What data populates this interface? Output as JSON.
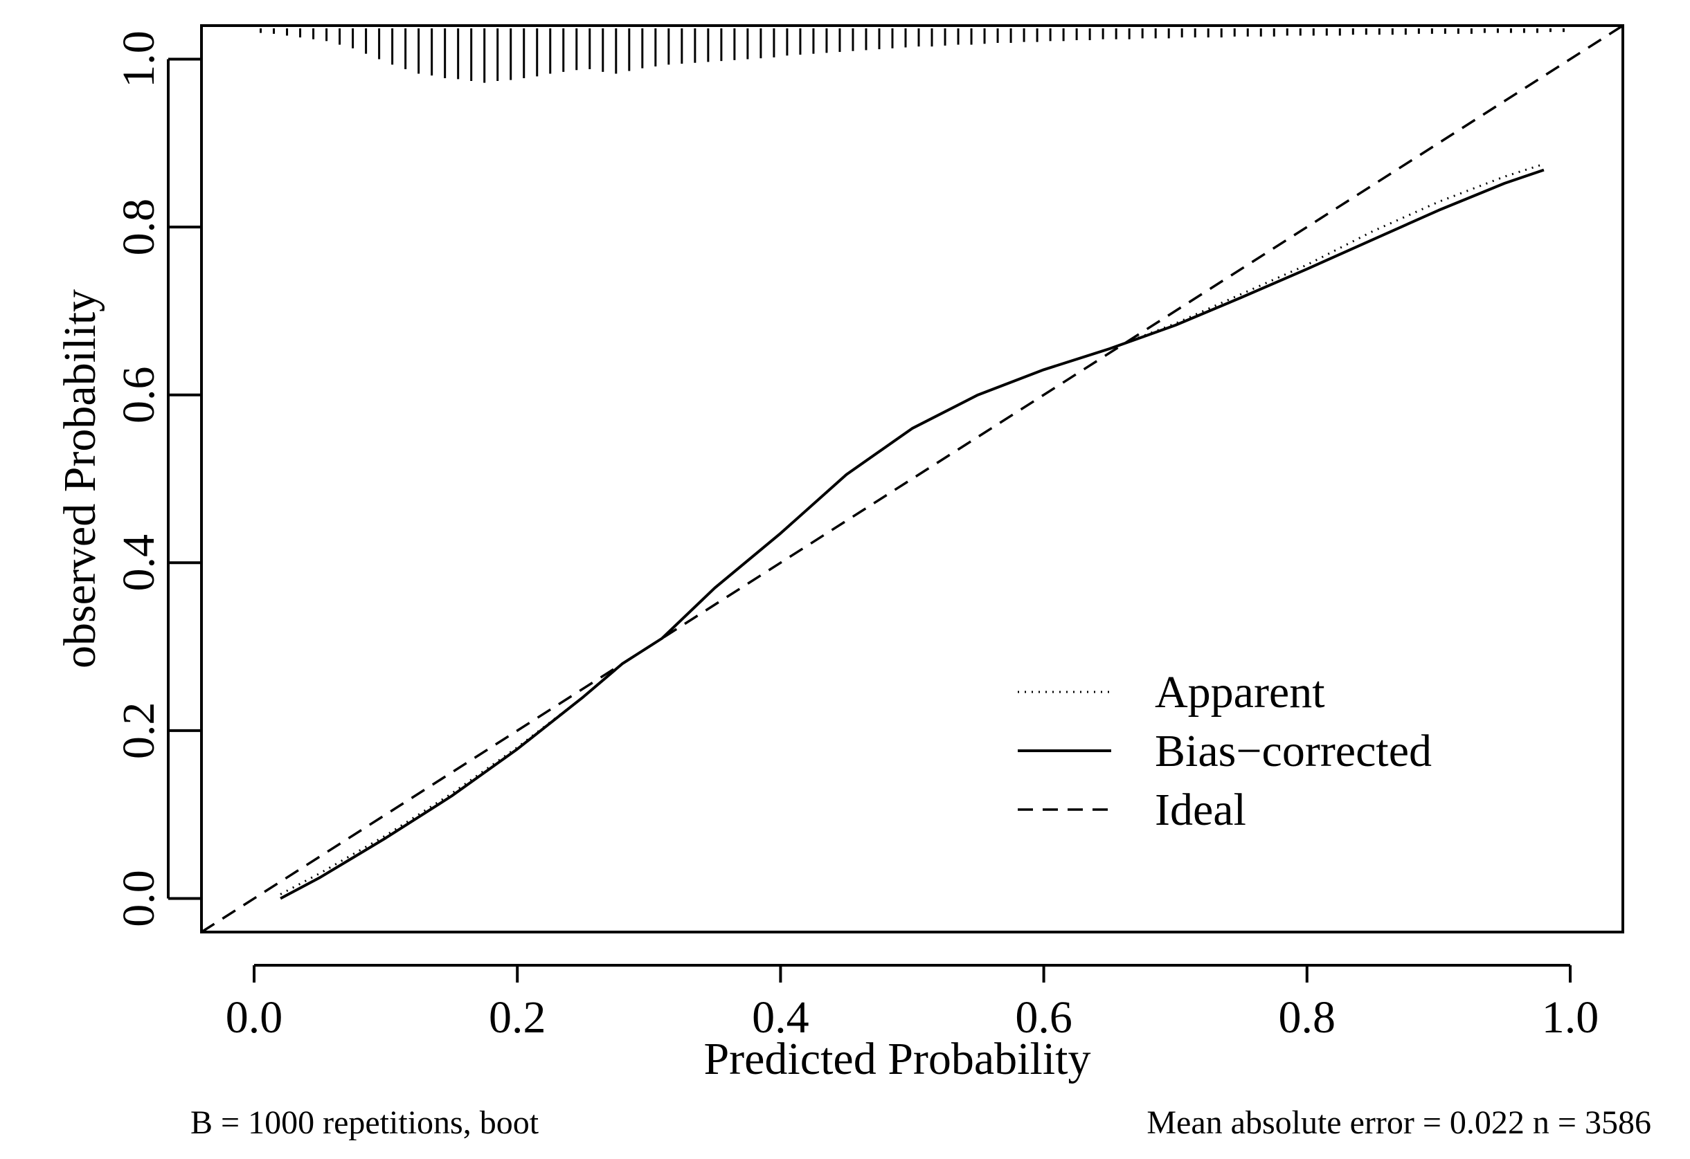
{
  "chart_data": {
    "type": "line",
    "title": "",
    "xlabel": "Predicted Probability",
    "ylabel": "observed Probability",
    "xlim": [
      -0.04,
      1.04
    ],
    "ylim": [
      -0.04,
      1.04
    ],
    "x_ticks": [
      "0.0",
      "0.2",
      "0.4",
      "0.6",
      "0.8",
      "1.0"
    ],
    "y_ticks": [
      "0.0",
      "0.2",
      "0.4",
      "0.6",
      "0.8",
      "1.0"
    ],
    "grid": false,
    "legend_position": "bottom-right",
    "series": [
      {
        "name": "Apparent",
        "style": "dotted",
        "x": [
          0.02,
          0.05,
          0.1,
          0.15,
          0.2,
          0.25,
          0.28,
          0.31,
          0.35,
          0.4,
          0.45,
          0.5,
          0.55,
          0.6,
          0.65,
          0.7,
          0.75,
          0.8,
          0.85,
          0.9,
          0.95,
          0.98
        ],
        "y": [
          0.005,
          0.03,
          0.075,
          0.125,
          0.18,
          0.24,
          0.28,
          0.31,
          0.37,
          0.435,
          0.505,
          0.56,
          0.6,
          0.63,
          0.655,
          0.685,
          0.72,
          0.755,
          0.795,
          0.83,
          0.86,
          0.875
        ]
      },
      {
        "name": "Bias−corrected",
        "style": "solid",
        "x": [
          0.02,
          0.05,
          0.1,
          0.15,
          0.2,
          0.25,
          0.28,
          0.31,
          0.35,
          0.4,
          0.45,
          0.5,
          0.55,
          0.6,
          0.65,
          0.7,
          0.75,
          0.8,
          0.85,
          0.9,
          0.95,
          0.98
        ],
        "y": [
          0.0,
          0.025,
          0.072,
          0.122,
          0.178,
          0.24,
          0.28,
          0.31,
          0.37,
          0.435,
          0.505,
          0.56,
          0.6,
          0.63,
          0.655,
          0.683,
          0.716,
          0.75,
          0.785,
          0.82,
          0.852,
          0.868
        ]
      },
      {
        "name": "Ideal",
        "style": "dashed",
        "x": [
          -0.04,
          1.04
        ],
        "y": [
          -0.04,
          1.04
        ]
      }
    ],
    "rug": {
      "x_start": 0.0,
      "x_end": 1.0,
      "count": 100,
      "length_fraction": [
        0.005,
        0.006,
        0.008,
        0.01,
        0.012,
        0.014,
        0.018,
        0.022,
        0.028,
        0.034,
        0.04,
        0.045,
        0.05,
        0.052,
        0.055,
        0.056,
        0.058,
        0.06,
        0.058,
        0.057,
        0.055,
        0.053,
        0.05,
        0.048,
        0.046,
        0.045,
        0.048,
        0.05,
        0.047,
        0.044,
        0.042,
        0.04,
        0.039,
        0.038,
        0.037,
        0.036,
        0.035,
        0.034,
        0.033,
        0.032,
        0.03,
        0.029,
        0.028,
        0.027,
        0.026,
        0.025,
        0.024,
        0.023,
        0.022,
        0.021,
        0.02,
        0.02,
        0.019,
        0.018,
        0.018,
        0.017,
        0.016,
        0.016,
        0.015,
        0.015,
        0.014,
        0.014,
        0.013,
        0.013,
        0.012,
        0.012,
        0.012,
        0.011,
        0.011,
        0.011,
        0.01,
        0.01,
        0.01,
        0.01,
        0.009,
        0.009,
        0.009,
        0.009,
        0.008,
        0.008,
        0.008,
        0.008,
        0.008,
        0.007,
        0.007,
        0.007,
        0.007,
        0.007,
        0.006,
        0.006,
        0.006,
        0.006,
        0.006,
        0.005,
        0.005,
        0.005,
        0.005,
        0.005,
        0.004,
        0.004
      ]
    }
  },
  "footer": {
    "left": "B =  1000 repetitions, boot",
    "right": "Mean absolute error = 0.022   n = 3586"
  }
}
